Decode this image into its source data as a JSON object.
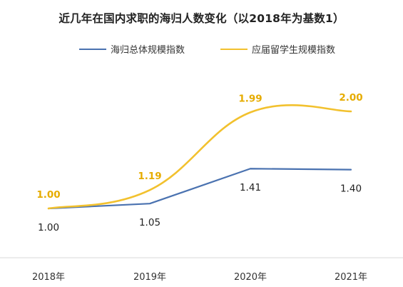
{
  "chart_data": {
    "type": "line",
    "title": "近几年在国内求职的海归人数变化（以2018年为基数1）",
    "categories": [
      "2018年",
      "2019年",
      "2020年",
      "2021年"
    ],
    "series": [
      {
        "name": "海归总体规模指数",
        "values": [
          1.0,
          1.05,
          1.41,
          1.4
        ],
        "labels": [
          "1.00",
          "1.05",
          "1.41",
          "1.40"
        ],
        "color": "#4a72b0",
        "label_color": "#222222",
        "smooth": false
      },
      {
        "name": "应届留学生规模指数",
        "values": [
          1.0,
          1.19,
          1.99,
          2.0
        ],
        "labels": [
          "1.00",
          "1.19",
          "1.99",
          "2.00"
        ],
        "color": "#f2c12e",
        "label_color": "#e6ac00",
        "smooth": true
      }
    ],
    "legend_position": "top",
    "grid": false,
    "ylim": [
      0.0,
      2.4
    ]
  }
}
